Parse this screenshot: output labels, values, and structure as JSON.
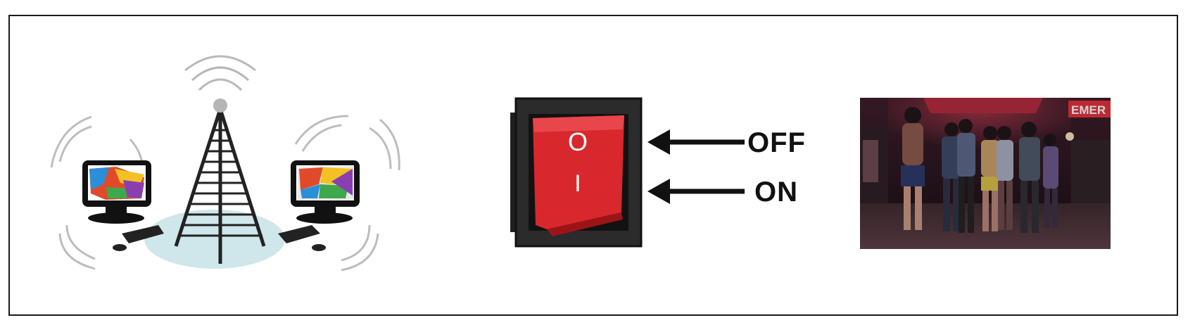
{
  "switch_labels": {
    "off": "OFF",
    "on": "ON",
    "symbol_off": "O",
    "symbol_on": "I"
  },
  "photo": {
    "sign_text": "EMER"
  },
  "icons": {
    "network": "wireless-network-tower-icon",
    "switch": "rocker-switch-icon",
    "photo": "night-street-photo"
  },
  "colors": {
    "switch_red": "#d8282d",
    "switch_housing": "#2b2b2b",
    "sign_red": "#e0303a",
    "glow_blue": "#cfe6ea"
  }
}
